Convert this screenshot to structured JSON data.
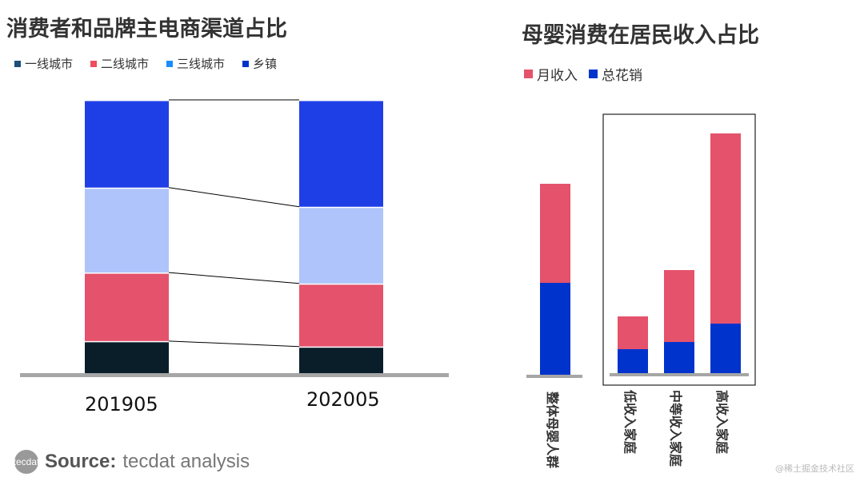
{
  "chart_data": [
    {
      "type": "bar",
      "stacked": true,
      "title": "消费者和品牌主电商渠道占比",
      "categories": [
        "201905",
        "202005"
      ],
      "series": [
        {
          "name": "一线城市",
          "values": [
            12,
            10
          ],
          "color": "#0a1e2a",
          "legend_color": "#1f4e79"
        },
        {
          "name": "二线城市",
          "values": [
            25,
            23
          ],
          "color": "#e5526b",
          "legend_color": "#ee4c5f"
        },
        {
          "name": "三线城市",
          "values": [
            31,
            28
          ],
          "color": "#aec4fb",
          "legend_color": "#1a8cff"
        },
        {
          "name": "乡镇",
          "values": [
            32,
            39
          ],
          "color": "#1f3fe6",
          "legend_color": "#0033cc"
        }
      ],
      "ylim": [
        0,
        100
      ],
      "grid": false,
      "legend": "top-left"
    },
    {
      "type": "bar",
      "title": "母婴消费在居民收入占比",
      "categories": [
        "整体母婴人群",
        "低收入家庭",
        "中等收入家庭",
        "高收入家庭"
      ],
      "series": [
        {
          "name": "月收入",
          "values": [
            240,
            74,
            132,
            303
          ],
          "color": "#e5526b"
        },
        {
          "name": "总花销",
          "values": [
            116,
            33,
            42,
            65
          ],
          "color": "#0033cc"
        }
      ],
      "grid": false,
      "legend": "top-left"
    }
  ],
  "source": {
    "logo": "tecdat",
    "label": "Source:",
    "text": "tecdat analysis"
  },
  "watermark": "@稀土掘金技术社区"
}
